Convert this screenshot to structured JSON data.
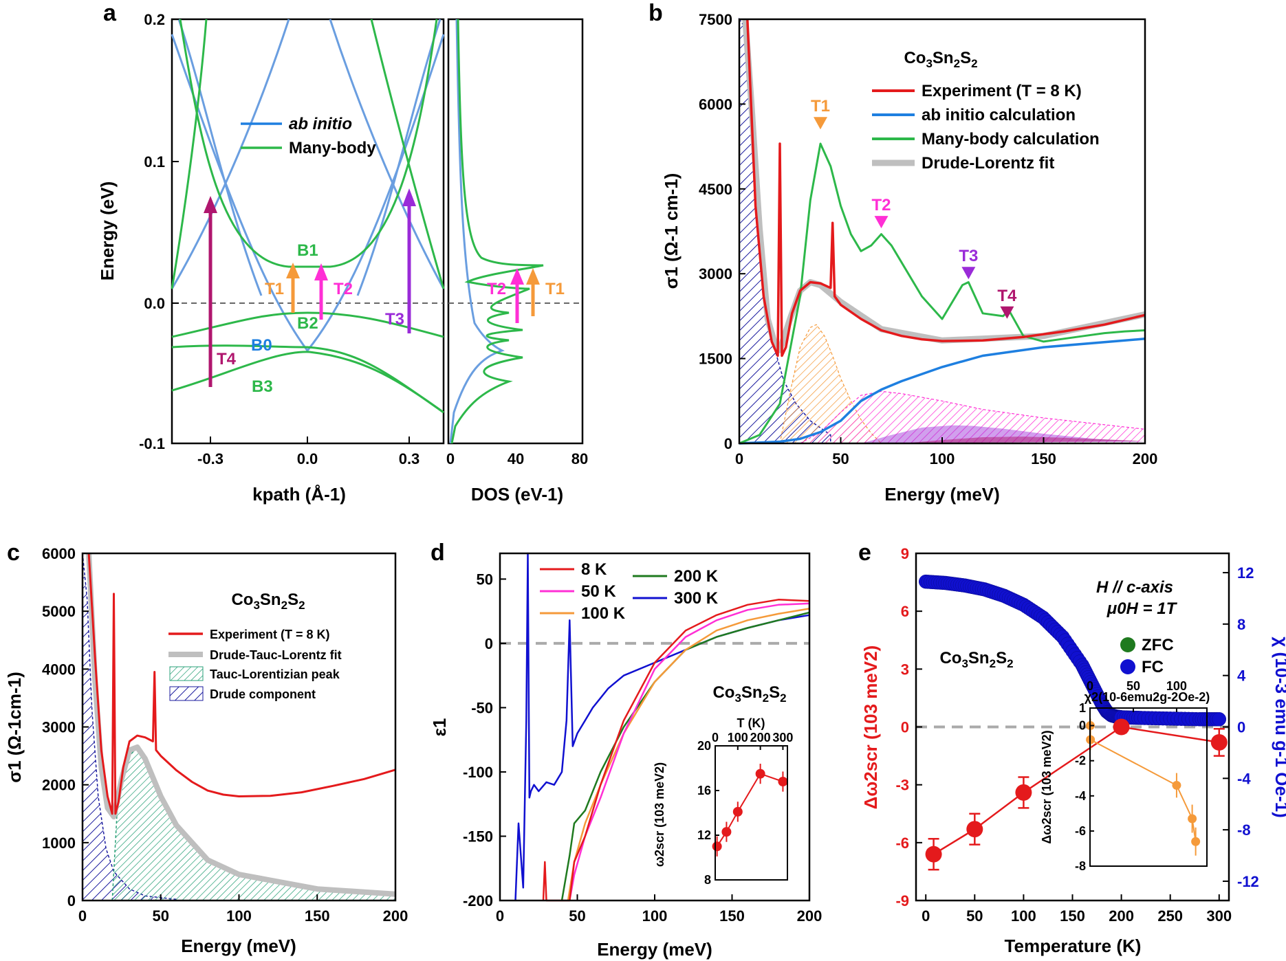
{
  "colors": {
    "red": "#e41a1c",
    "blue": "#1e7fe0",
    "lightblue": "#6a9ee0",
    "green": "#2db84a",
    "gray": "#bfbfbf",
    "orange": "#f59a3a",
    "magenta": "#ff2fd5",
    "purple": "#9a2bd8",
    "darkmag": "#b0166e",
    "navy": "#1a1a9e",
    "teal": "#2aa178",
    "darkgreen": "#1f7a1f",
    "bblue": "#1010d0"
  },
  "chart_data": [
    {
      "panel": "a",
      "type": "line",
      "title": "",
      "xlabel": "kpath (Å-1)",
      "ylabel": "Energy (eV)",
      "xlim": [
        -0.42,
        0.42
      ],
      "ylim": [
        -0.1,
        0.2
      ],
      "xticks": [
        "-0.3",
        "0.0",
        "0.3"
      ],
      "yticks": [
        "-0.1",
        "0.0",
        "0.1",
        "0.2"
      ],
      "legend": [
        "ab initio",
        "Many-body"
      ],
      "band_labels": [
        "B0",
        "B1",
        "B2",
        "B3"
      ],
      "transition_labels": [
        "T1",
        "T2",
        "T3",
        "T4"
      ],
      "transitions": [
        {
          "name": "T1",
          "k": -0.05,
          "from": -0.007,
          "to": 0.027
        },
        {
          "name": "T2",
          "k": 0.05,
          "from": -0.012,
          "to": 0.027
        },
        {
          "name": "T3",
          "k": 0.3,
          "from": -0.022,
          "to": 0.078
        },
        {
          "name": "T4",
          "k": -0.3,
          "from": -0.058,
          "to": 0.075
        }
      ]
    },
    {
      "panel": "a-dos",
      "type": "line",
      "xlabel": "DOS (eV-1)",
      "xlim": [
        0,
        80
      ],
      "xticks": [
        "0",
        "40",
        "80"
      ],
      "ylim": [
        -0.1,
        0.2
      ],
      "transition_labels": [
        "T2",
        "T1"
      ]
    },
    {
      "panel": "b",
      "type": "line",
      "title": "Co3Sn2S2",
      "xlabel": "Energy (meV)",
      "ylabel": "σ1 (Ω-1 cm-1)",
      "xlim": [
        0,
        200
      ],
      "ylim": [
        0,
        7500
      ],
      "xticks": [
        "0",
        "50",
        "100",
        "150",
        "200"
      ],
      "yticks": [
        "0",
        "1500",
        "3000",
        "4500",
        "6000",
        "7500"
      ],
      "legend": [
        "Experiment (T = 8 K)",
        "ab initio calculation",
        "Many-body calculation",
        "Drude-Lorentz fit"
      ],
      "markers": [
        {
          "name": "T1",
          "x": 40,
          "y": 5650
        },
        {
          "name": "T2",
          "x": 70,
          "y": 3900
        },
        {
          "name": "T3",
          "x": 113,
          "y": 3000
        },
        {
          "name": "T4",
          "x": 132,
          "y": 2300
        }
      ],
      "series": [
        {
          "name": "Experiment (T = 8 K)",
          "x": [
            4,
            8,
            12,
            16,
            19,
            20,
            21,
            23,
            26,
            30,
            35,
            40,
            45,
            46,
            47,
            50,
            60,
            70,
            80,
            90,
            100,
            120,
            140,
            160,
            180,
            200
          ],
          "values": [
            7500,
            4200,
            2600,
            1800,
            1550,
            5300,
            1550,
            1700,
            2300,
            2700,
            2850,
            2830,
            2750,
            3900,
            2600,
            2450,
            2200,
            2000,
            1900,
            1840,
            1810,
            1820,
            1880,
            1980,
            2100,
            2270
          ]
        },
        {
          "name": "ab initio calculation",
          "x": [
            0,
            20,
            30,
            40,
            50,
            60,
            70,
            80,
            100,
            120,
            150,
            200
          ],
          "values": [
            0,
            30,
            80,
            200,
            400,
            750,
            950,
            1100,
            1350,
            1550,
            1700,
            1850
          ]
        },
        {
          "name": "Many-body calculation",
          "x": [
            0,
            10,
            20,
            30,
            35,
            40,
            45,
            50,
            55,
            60,
            65,
            70,
            75,
            80,
            90,
            100,
            110,
            113,
            120,
            130,
            133,
            140,
            150,
            160,
            170,
            180,
            190,
            200
          ],
          "values": [
            0,
            150,
            700,
            2600,
            4300,
            5300,
            4900,
            4200,
            3700,
            3400,
            3500,
            3700,
            3500,
            3200,
            2600,
            2200,
            2800,
            2850,
            2300,
            2250,
            2350,
            1900,
            1800,
            1850,
            1900,
            1950,
            1980,
            2000
          ]
        },
        {
          "name": "Drude-Lorentz fit",
          "x": [
            3,
            6,
            10,
            14,
            18,
            20,
            25,
            30,
            35,
            40,
            50,
            70,
            100,
            150,
            200
          ],
          "values": [
            7500,
            6000,
            3800,
            2200,
            1700,
            1650,
            2200,
            2700,
            2850,
            2800,
            2500,
            2020,
            1820,
            1900,
            2280
          ]
        }
      ]
    },
    {
      "panel": "c",
      "type": "line",
      "title": "Co3Sn2S2",
      "xlabel": "Energy (meV)",
      "ylabel": "σ1 (Ω-1cm-1)",
      "xlim": [
        0,
        200
      ],
      "ylim": [
        0,
        6000
      ],
      "xticks": [
        "0",
        "50",
        "100",
        "150",
        "200"
      ],
      "yticks": [
        "0",
        "1000",
        "2000",
        "3000",
        "4000",
        "5000",
        "6000"
      ],
      "legend": [
        "Experiment (T = 8 K)",
        "Drude-Tauc-Lorentz fit",
        "Tauc-Lorentizian peak",
        "Drude component"
      ],
      "series": [
        {
          "name": "Experiment (T = 8 K)",
          "x": [
            4,
            8,
            12,
            16,
            19,
            20,
            21,
            23,
            26,
            30,
            35,
            40,
            45,
            46,
            47,
            50,
            60,
            70,
            80,
            90,
            100,
            120,
            140,
            160,
            180,
            200
          ],
          "values": [
            6000,
            4200,
            2600,
            1800,
            1500,
            5300,
            1500,
            1700,
            2300,
            2750,
            2850,
            2820,
            2750,
            3950,
            2600,
            2500,
            2250,
            2050,
            1900,
            1830,
            1800,
            1810,
            1870,
            1980,
            2100,
            2260
          ]
        },
        {
          "name": "Drude-Tauc-Lorentz fit",
          "x": [
            4,
            8,
            12,
            16,
            20,
            25,
            30,
            35,
            40,
            50,
            60,
            80,
            100,
            150,
            200
          ],
          "values": [
            6000,
            3800,
            2300,
            1600,
            1450,
            2100,
            2600,
            2650,
            2450,
            1800,
            1300,
            700,
            450,
            200,
            110
          ]
        },
        {
          "name": "Tauc-Lorentizian peak",
          "x": [
            19,
            22,
            25,
            30,
            35,
            40,
            50,
            60,
            80,
            100,
            150,
            200
          ],
          "values": [
            0,
            1500,
            2000,
            2500,
            2650,
            2450,
            1800,
            1300,
            700,
            450,
            200,
            100
          ]
        },
        {
          "name": "Drude component",
          "x": [
            0,
            3,
            6,
            10,
            15,
            20,
            30,
            40,
            60
          ],
          "values": [
            6000,
            5200,
            3300,
            1800,
            900,
            500,
            200,
            80,
            20
          ]
        }
      ]
    },
    {
      "panel": "d",
      "type": "line",
      "title": "Co3Sn2S2",
      "xlabel": "Energy (meV)",
      "ylabel": "ε1",
      "xlim": [
        0,
        200
      ],
      "ylim": [
        -200,
        70
      ],
      "xticks": [
        "0",
        "50",
        "100",
        "150",
        "200"
      ],
      "yticks": [
        "-200",
        "-150",
        "-100",
        "-50",
        "0",
        "50"
      ],
      "legend": [
        "8 K",
        "50 K",
        "100 K",
        "200 K",
        "300 K"
      ],
      "series": [
        {
          "name": "8 K",
          "x": [
            28,
            29,
            30,
            45,
            48,
            55,
            65,
            80,
            100,
            120,
            140,
            160,
            180,
            200
          ],
          "values": [
            -200,
            -170,
            -200,
            -200,
            -170,
            -150,
            -110,
            -60,
            -15,
            10,
            22,
            30,
            34,
            33
          ]
        },
        {
          "name": "50 K",
          "x": [
            45,
            48,
            55,
            65,
            80,
            100,
            120,
            140,
            160,
            180,
            200
          ],
          "values": [
            -200,
            -180,
            -150,
            -120,
            -70,
            -20,
            5,
            18,
            26,
            30,
            31
          ]
        },
        {
          "name": "100 K",
          "x": [
            44,
            48,
            55,
            65,
            80,
            100,
            120,
            140,
            160,
            180,
            200
          ],
          "values": [
            -200,
            -170,
            -140,
            -110,
            -70,
            -30,
            -5,
            10,
            18,
            23,
            27
          ]
        },
        {
          "name": "200 K",
          "x": [
            40,
            45,
            48,
            55,
            65,
            80,
            100,
            120,
            140,
            160,
            180,
            200
          ],
          "values": [
            -200,
            -165,
            -140,
            -130,
            -100,
            -65,
            -30,
            -5,
            5,
            12,
            18,
            24
          ]
        },
        {
          "name": "300 K",
          "x": [
            10,
            12,
            15,
            17,
            18,
            19,
            20,
            22,
            25,
            30,
            35,
            40,
            43,
            45,
            47,
            50,
            55,
            60,
            70,
            80,
            100,
            120,
            140,
            160,
            180,
            200
          ],
          "values": [
            -200,
            -140,
            -190,
            -60,
            70,
            -120,
            -115,
            -110,
            -115,
            -108,
            -110,
            -100,
            -60,
            18,
            -80,
            -70,
            -60,
            -50,
            -35,
            -25,
            -15,
            -5,
            5,
            12,
            18,
            22
          ]
        }
      ],
      "inset": {
        "xlabel": "T (K)",
        "ylabel": "ω2scr (103 meV2)",
        "xlim": [
          0,
          320
        ],
        "ylim": [
          8,
          20
        ],
        "xticks": [
          "0",
          "100",
          "200",
          "300"
        ],
        "yticks": [
          "8",
          "12",
          "16",
          "20"
        ],
        "x": [
          8,
          50,
          100,
          200,
          300
        ],
        "values": [
          11.0,
          12.3,
          14.1,
          17.5,
          16.8
        ],
        "errors": [
          0.9,
          0.9,
          0.9,
          0.9,
          0.9
        ]
      }
    },
    {
      "panel": "e",
      "type": "scatter",
      "title": "Co3Sn2S2",
      "xlabel": "Temperature (K)",
      "ylabel": "Δω2scr (103 meV2)",
      "y2label": "χ (10-3 emu g-1 Oe-1)",
      "xlim": [
        -10,
        310
      ],
      "ylim": [
        -9,
        9
      ],
      "y2lim": [
        -13.5,
        13.5
      ],
      "xticks": [
        "0",
        "50",
        "100",
        "150",
        "200",
        "250",
        "300"
      ],
      "yticks": [
        "-9",
        "-6",
        "-3",
        "0",
        "3",
        "6",
        "9"
      ],
      "y2ticks": [
        "-12",
        "-8",
        "-4",
        "0",
        "4",
        "8",
        "12"
      ],
      "annotation_field": "H // c-axis",
      "annotation_mu": "μ0H = 1T",
      "legend": [
        "ZFC",
        "FC"
      ],
      "series": [
        {
          "name": "Δω2scr",
          "x": [
            8,
            50,
            100,
            200,
            300
          ],
          "values": [
            -6.6,
            -5.3,
            -3.4,
            0.0,
            -0.8
          ],
          "errors": [
            0.8,
            0.8,
            0.8,
            0.3,
            0.7
          ]
        },
        {
          "name": "FC",
          "x": [
            0,
            20,
            40,
            60,
            80,
            100,
            120,
            140,
            160,
            170,
            180,
            185,
            190,
            195,
            200,
            220,
            250,
            280,
            300
          ],
          "values": [
            11.3,
            11.2,
            11.0,
            10.7,
            10.2,
            9.5,
            8.5,
            7.0,
            4.8,
            3.3,
            1.8,
            1.2,
            0.9,
            0.8,
            0.75,
            0.7,
            0.65,
            0.6,
            0.6
          ]
        }
      ],
      "inset": {
        "xlabel": "χ2(10-6emu2g-2Oe-2)",
        "ylabel": "Δω2scr (103 meV2)",
        "xlim": [
          0,
          135
        ],
        "ylim": [
          -8,
          1
        ],
        "xticks": [
          "0",
          "50",
          "100"
        ],
        "yticks": [
          "1",
          "0",
          "-2",
          "-4",
          "-6",
          "-8"
        ],
        "x": [
          0.4,
          0.5,
          100,
          118,
          122
        ],
        "values": [
          0.0,
          -0.8,
          -3.4,
          -5.3,
          -6.6
        ],
        "errors": [
          0.4,
          0.6,
          0.7,
          0.8,
          0.8
        ]
      }
    }
  ]
}
